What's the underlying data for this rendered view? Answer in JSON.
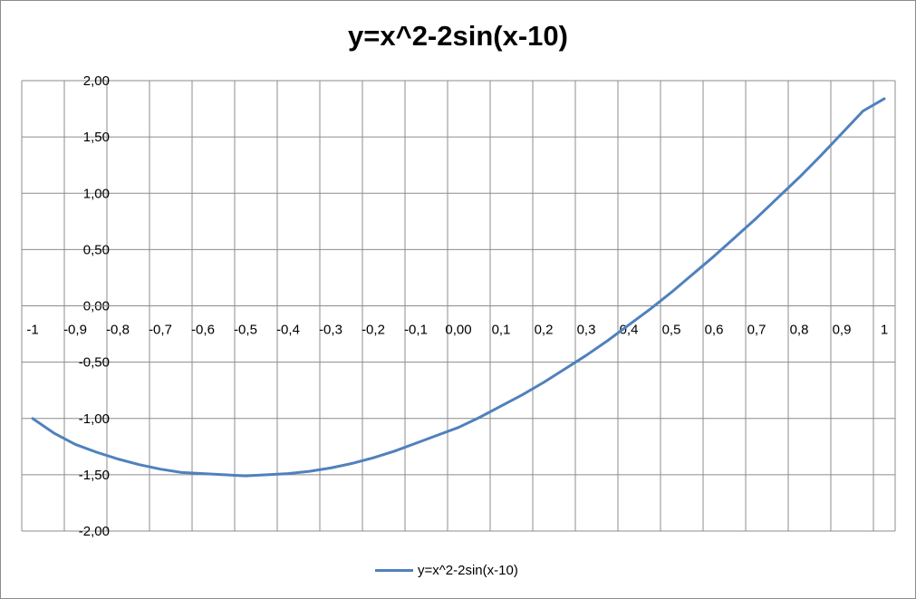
{
  "chart_data": {
    "type": "line",
    "title": "y=x^2-2sin(x-10)",
    "x_tick_labels": [
      "-1",
      "-0,9",
      "-0,8",
      "-0,7",
      "-0,6",
      "-0,5",
      "-0,4",
      "-0,3",
      "-0,2",
      "-0,1",
      "0,00",
      "0,1",
      "0,2",
      "0,3",
      "0,4",
      "0,5",
      "0,6",
      "0,7",
      "0,8",
      "0,9",
      "1"
    ],
    "y_tick_labels": [
      "2,00",
      "1,50",
      "1,00",
      "0,50",
      "0,00",
      "-0,50",
      "-1,00",
      "-1,50",
      "-2,00"
    ],
    "ylim": [
      -2,
      2
    ],
    "xlim": [
      -1,
      1
    ],
    "grid": true,
    "legend": "bottom",
    "series": [
      {
        "name": "y=x^2-2sin(x-10)",
        "color": "#4f81bd",
        "x": [
          -1,
          -0.95,
          -0.9,
          -0.85,
          -0.8,
          -0.75,
          -0.7,
          -0.65,
          -0.6,
          -0.55,
          -0.5,
          -0.45,
          -0.4,
          -0.35,
          -0.3,
          -0.25,
          -0.2,
          -0.15,
          -0.1,
          -0.05,
          0,
          0.05,
          0.1,
          0.15,
          0.2,
          0.25,
          0.3,
          0.35,
          0.4,
          0.45,
          0.5,
          0.55,
          0.6,
          0.65,
          0.7,
          0.75,
          0.8,
          0.85,
          0.9,
          0.95,
          1
        ],
        "y": [
          -1.0,
          -1.13,
          -1.23,
          -1.3,
          -1.36,
          -1.41,
          -1.45,
          -1.48,
          -1.49,
          -1.5,
          -1.51,
          -1.5,
          -1.49,
          -1.47,
          -1.44,
          -1.4,
          -1.35,
          -1.29,
          -1.22,
          -1.15,
          -1.08,
          -0.99,
          -0.89,
          -0.79,
          -0.68,
          -0.56,
          -0.44,
          -0.31,
          -0.17,
          -0.03,
          0.12,
          0.28,
          0.44,
          0.61,
          0.78,
          0.96,
          1.14,
          1.33,
          1.53,
          1.73,
          1.84
        ]
      }
    ]
  }
}
